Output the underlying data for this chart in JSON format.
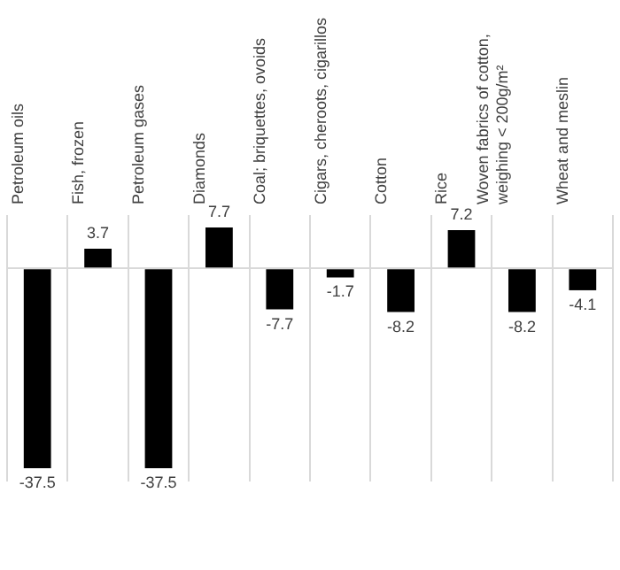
{
  "chart_data": {
    "type": "bar",
    "categories": [
      "Petroleum oils",
      "Fish, frozen",
      "Petroleum gases",
      "Diamonds",
      "Coal; briquettes, ovoids",
      "Cigars, cheroots, cigarillos",
      "Cotton",
      "Rice",
      "Woven fabrics of cotton, weighing < 200g/m²",
      "Wheat and meslin"
    ],
    "values": [
      -37.5,
      3.7,
      -37.5,
      7.7,
      -7.7,
      -1.7,
      -8.2,
      7.2,
      -8.2,
      -4.1
    ],
    "color": "#000000",
    "data_labels": true,
    "grid": "x",
    "legend": false
  }
}
